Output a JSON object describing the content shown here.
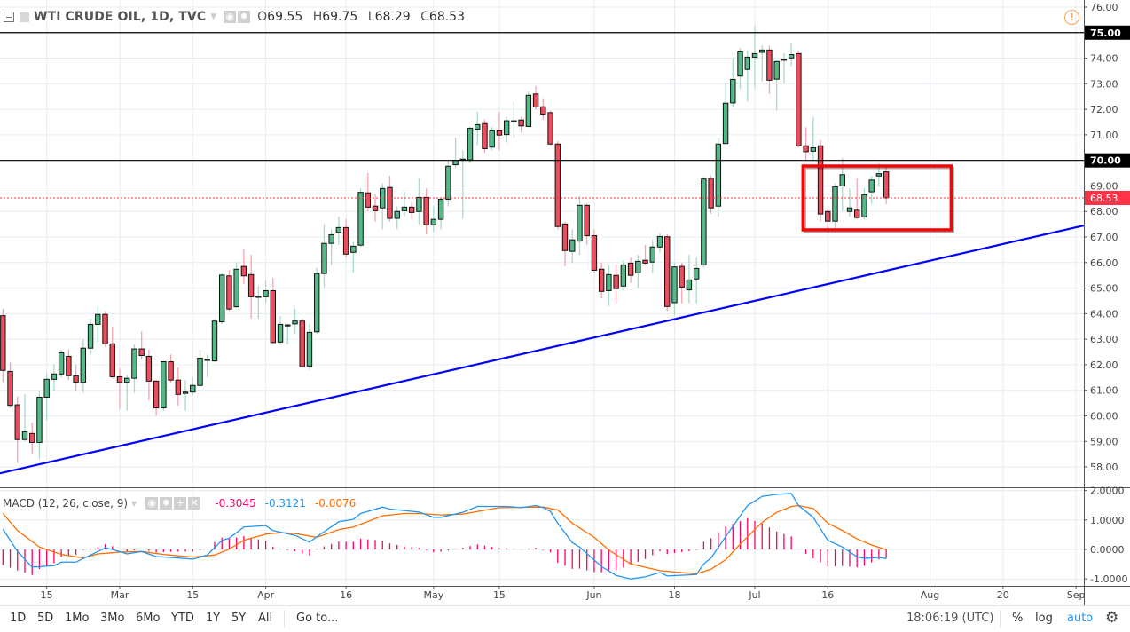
{
  "header": {
    "title": "WTI CRUDE OIL, 1D, TVC",
    "ohlc": {
      "o_label": "O",
      "o": "69.55",
      "h_label": "H",
      "h": "69.75",
      "l_label": "L",
      "l": "68.29",
      "c_label": "C",
      "c": "68.53"
    }
  },
  "macd_header": {
    "title": "MACD (12, 26, close, 9)",
    "histogram": "-0.3045",
    "macd": "-0.3121",
    "signal": "-0.0076"
  },
  "toolbar": {
    "ranges": [
      "1D",
      "5D",
      "1Mo",
      "3Mo",
      "6Mo",
      "YTD",
      "1Y",
      "5Y",
      "All"
    ],
    "goto": "Go to...",
    "clock": "18:06:19 (UTC)",
    "percent": "%",
    "log": "log",
    "auto": "auto"
  },
  "colors": {
    "up": "#53b987",
    "down": "#eb4d5c",
    "up_wick": "#a9dcc3",
    "down_wick": "#f5a6ae",
    "trendline": "#0000ff",
    "box": "#ff0000",
    "macd": "#2196f3",
    "signal": "#ff6d00",
    "histogram": "#ff0066",
    "price_line": "#ff3347",
    "level_line": "#000000"
  },
  "icons": {
    "collapse": "minus-square-icon",
    "eye": "eye-icon",
    "gear": "gear-icon",
    "alert": "exclamation-circle-icon",
    "add": "plus-icon",
    "close": "close-icon"
  },
  "chart_data": {
    "type": "candlestick",
    "ylim": [
      57.75,
      76.2
    ],
    "y_ticks": [
      "58.00",
      "59.00",
      "60.00",
      "61.00",
      "62.00",
      "63.00",
      "64.00",
      "65.00",
      "66.00",
      "67.00",
      "68.00",
      "69.00",
      "70.00",
      "71.00",
      "72.00",
      "73.00",
      "74.00",
      "75.00",
      "76.00"
    ],
    "x_ticks": [
      {
        "label": "15",
        "bar": 6
      },
      {
        "label": "Mar",
        "bar": 16
      },
      {
        "label": "15",
        "bar": 26
      },
      {
        "label": "Apr",
        "bar": 36
      },
      {
        "label": "16",
        "bar": 47
      },
      {
        "label": "May",
        "bar": 59
      },
      {
        "label": "15",
        "bar": 68
      },
      {
        "label": "Jun",
        "bar": 81
      },
      {
        "label": "18",
        "bar": 92
      },
      {
        "label": "Jul",
        "bar": 103
      },
      {
        "label": "16",
        "bar": 113
      },
      {
        "label": "Aug",
        "bar": 127
      },
      {
        "label": "20",
        "bar": 137
      },
      {
        "label": "Sep",
        "bar": 147
      }
    ],
    "grid": true,
    "ohlc": [
      [
        63.92,
        64.18,
        61.31,
        61.78
      ],
      [
        61.74,
        62.09,
        60.3,
        60.41
      ],
      [
        60.43,
        60.76,
        58.15,
        59.07
      ],
      [
        59.07,
        60.85,
        59.0,
        59.38
      ],
      [
        59.31,
        59.74,
        58.5,
        58.96
      ],
      [
        58.96,
        60.93,
        58.3,
        60.73
      ],
      [
        60.73,
        61.66,
        59.83,
        61.43
      ],
      [
        61.43,
        62.01,
        60.97,
        61.64
      ],
      [
        61.64,
        62.6,
        61.5,
        62.47
      ],
      [
        62.33,
        62.6,
        61.4,
        61.57
      ],
      [
        61.57,
        62.0,
        61.0,
        61.31
      ],
      [
        61.31,
        63.0,
        60.9,
        62.65
      ],
      [
        62.65,
        63.8,
        62.4,
        63.58
      ],
      [
        63.58,
        64.3,
        62.9,
        63.97
      ],
      [
        63.97,
        64.1,
        62.7,
        62.82
      ],
      [
        62.82,
        63.5,
        61.45,
        61.53
      ],
      [
        61.53,
        61.86,
        60.27,
        61.31
      ],
      [
        61.31,
        61.6,
        60.2,
        61.47
      ],
      [
        61.47,
        62.8,
        60.9,
        62.62
      ],
      [
        62.62,
        63.3,
        62.2,
        62.36
      ],
      [
        62.33,
        62.6,
        60.6,
        61.36
      ],
      [
        61.36,
        61.4,
        60.0,
        60.31
      ],
      [
        60.31,
        62.14,
        60.2,
        62.12
      ],
      [
        62.12,
        62.4,
        61.3,
        61.4
      ],
      [
        61.4,
        61.9,
        60.4,
        60.84
      ],
      [
        60.88,
        61.4,
        60.2,
        60.93
      ],
      [
        60.93,
        61.5,
        60.8,
        61.19
      ],
      [
        61.19,
        62.6,
        61.1,
        62.26
      ],
      [
        62.2,
        62.4,
        61.5,
        62.21
      ],
      [
        62.15,
        63.8,
        62.1,
        63.71
      ],
      [
        63.68,
        65.6,
        63.6,
        65.51
      ],
      [
        65.48,
        65.7,
        64.1,
        64.18
      ],
      [
        64.27,
        66.02,
        64.21,
        65.74
      ],
      [
        65.85,
        66.55,
        65.16,
        65.48
      ],
      [
        65.53,
        66.3,
        63.8,
        64.66
      ],
      [
        64.68,
        65.1,
        63.8,
        64.68
      ],
      [
        64.66,
        65.3,
        64.4,
        64.9
      ],
      [
        64.9,
        65.4,
        62.9,
        62.87
      ],
      [
        62.89,
        63.9,
        62.8,
        63.58
      ],
      [
        63.56,
        63.6,
        62.8,
        63.56
      ],
      [
        63.6,
        64.2,
        63.2,
        63.71
      ],
      [
        63.71,
        63.8,
        61.9,
        61.92
      ],
      [
        61.95,
        63.6,
        61.8,
        63.27
      ],
      [
        63.29,
        65.8,
        63.2,
        65.57
      ],
      [
        65.57,
        67.5,
        65.0,
        66.75
      ],
      [
        66.75,
        67.3,
        65.9,
        67.09
      ],
      [
        67.18,
        67.8,
        66.7,
        67.37
      ],
      [
        67.37,
        67.7,
        66.2,
        66.33
      ],
      [
        66.4,
        66.8,
        65.6,
        66.64
      ],
      [
        66.68,
        68.9,
        66.6,
        68.75
      ],
      [
        68.73,
        69.5,
        68.0,
        68.17
      ],
      [
        68.21,
        68.7,
        67.6,
        68.03
      ],
      [
        68.14,
        69.1,
        67.3,
        68.9
      ],
      [
        68.94,
        69.4,
        67.6,
        67.73
      ],
      [
        67.73,
        68.2,
        67.3,
        68.0
      ],
      [
        68.03,
        68.8,
        67.8,
        68.17
      ],
      [
        68.17,
        68.35,
        67.7,
        67.96
      ],
      [
        68.0,
        69.3,
        67.5,
        68.55
      ],
      [
        68.55,
        68.9,
        67.1,
        67.48
      ],
      [
        67.48,
        68.2,
        67.2,
        67.69
      ],
      [
        67.69,
        68.5,
        67.3,
        68.48
      ],
      [
        68.48,
        70.0,
        68.2,
        69.77
      ],
      [
        69.83,
        70.9,
        69.7,
        70.0
      ],
      [
        70.05,
        70.4,
        67.71,
        70.05
      ],
      [
        70.02,
        71.3,
        69.9,
        71.26
      ],
      [
        71.22,
        71.9,
        70.6,
        71.4
      ],
      [
        71.44,
        71.6,
        70.3,
        70.46
      ],
      [
        70.52,
        71.3,
        70.4,
        71.16
      ],
      [
        71.16,
        71.9,
        70.4,
        70.99
      ],
      [
        71.01,
        71.7,
        70.7,
        71.55
      ],
      [
        71.55,
        72.3,
        70.9,
        71.55
      ],
      [
        71.58,
        71.7,
        71.1,
        71.35
      ],
      [
        71.33,
        72.7,
        71.3,
        72.55
      ],
      [
        72.6,
        72.92,
        72.0,
        72.09
      ],
      [
        72.1,
        72.4,
        71.6,
        71.81
      ],
      [
        71.87,
        71.95,
        70.6,
        70.64
      ],
      [
        70.64,
        70.75,
        67.3,
        67.41
      ],
      [
        67.51,
        67.6,
        65.85,
        66.47
      ],
      [
        66.44,
        67.3,
        65.98,
        66.89
      ],
      [
        66.84,
        68.6,
        66.3,
        68.24
      ],
      [
        68.24,
        68.3,
        66.7,
        67.05
      ],
      [
        67.05,
        67.3,
        65.6,
        65.7
      ],
      [
        65.74,
        66.0,
        64.6,
        64.87
      ],
      [
        64.9,
        65.9,
        64.3,
        65.53
      ],
      [
        65.5,
        65.95,
        64.4,
        64.98
      ],
      [
        65.08,
        66.1,
        64.9,
        65.91
      ],
      [
        65.98,
        66.2,
        65.2,
        65.5
      ],
      [
        65.6,
        66.3,
        65.0,
        66.05
      ],
      [
        66.09,
        66.7,
        65.9,
        65.98
      ],
      [
        66.02,
        66.9,
        65.6,
        66.61
      ],
      [
        66.61,
        67.15,
        66.4,
        67.02
      ],
      [
        67.01,
        67.1,
        64.1,
        64.28
      ],
      [
        64.43,
        66.0,
        63.94,
        65.83
      ],
      [
        65.85,
        66.0,
        64.4,
        65.04
      ],
      [
        64.93,
        66.3,
        64.4,
        65.32
      ],
      [
        65.36,
        66.2,
        64.4,
        65.77
      ],
      [
        65.91,
        69.35,
        65.8,
        69.27
      ],
      [
        69.3,
        69.4,
        67.9,
        68.14
      ],
      [
        68.21,
        70.9,
        67.8,
        70.64
      ],
      [
        70.66,
        73.0,
        70.6,
        72.24
      ],
      [
        72.25,
        74.0,
        72.1,
        73.17
      ],
      [
        73.3,
        74.4,
        72.8,
        74.25
      ],
      [
        73.56,
        74.3,
        72.3,
        74.04
      ],
      [
        74.04,
        75.27,
        72.83,
        74.18
      ],
      [
        74.23,
        74.5,
        73.1,
        74.32
      ],
      [
        74.32,
        74.5,
        72.6,
        73.14
      ],
      [
        73.18,
        73.9,
        71.95,
        73.87
      ],
      [
        73.96,
        74.2,
        73.0,
        73.96
      ],
      [
        74.01,
        74.6,
        73.7,
        74.14
      ],
      [
        74.18,
        74.25,
        70.5,
        70.57
      ],
      [
        70.57,
        71.3,
        70.0,
        70.34
      ],
      [
        70.36,
        71.7,
        70.0,
        70.49
      ],
      [
        70.57,
        70.8,
        67.6,
        67.9
      ],
      [
        68.0,
        68.1,
        67.2,
        67.62
      ],
      [
        67.62,
        69.1,
        67.2,
        68.97
      ],
      [
        69.0,
        70.1,
        68.0,
        69.44
      ],
      [
        68.0,
        68.9,
        67.8,
        68.14
      ],
      [
        68.05,
        69.3,
        67.7,
        67.76
      ],
      [
        67.79,
        68.9,
        67.7,
        68.66
      ],
      [
        68.77,
        69.4,
        68.3,
        69.23
      ],
      [
        69.39,
        69.9,
        68.98,
        69.48
      ],
      [
        69.55,
        69.75,
        68.29,
        68.53
      ]
    ],
    "horizontal_levels": [
      {
        "price": 75.0,
        "label": "75.00"
      },
      {
        "price": 70.0,
        "label": "70.00"
      }
    ],
    "last_price": {
      "price": 68.53,
      "label": "68.53"
    },
    "trendline": {
      "from": {
        "bar": -0.4,
        "price": 57.75
      },
      "to": {
        "bar": 148.1,
        "price": 67.45
      }
    },
    "highlight_box": {
      "bar_from": 109.6,
      "bar_to": 129.9,
      "price_top": 69.78,
      "price_bottom": 67.28
    },
    "macd_pane": {
      "ylim": [
        -1.2,
        2.05
      ],
      "y_ticks": [
        "2.0000",
        "1.0000",
        "0.0000",
        "-1.0000"
      ],
      "macd": [
        [
          0,
          0.69
        ],
        [
          2,
          -0.07
        ],
        [
          4,
          -0.6
        ],
        [
          7,
          -0.55
        ],
        [
          8,
          -0.43
        ],
        [
          10,
          -0.43
        ],
        [
          12,
          -0.19
        ],
        [
          14,
          0.05
        ],
        [
          15,
          0.0
        ],
        [
          17,
          -0.15
        ],
        [
          19,
          -0.07
        ],
        [
          21,
          -0.24
        ],
        [
          24,
          -0.29
        ],
        [
          26,
          -0.33
        ],
        [
          28,
          -0.19
        ],
        [
          30,
          0.31
        ],
        [
          31,
          0.38
        ],
        [
          33,
          0.76
        ],
        [
          36,
          0.81
        ],
        [
          37,
          0.64
        ],
        [
          40,
          0.48
        ],
        [
          42,
          0.25
        ],
        [
          43,
          0.43
        ],
        [
          46,
          0.94
        ],
        [
          48,
          1.02
        ],
        [
          49,
          1.22
        ],
        [
          52,
          1.44
        ],
        [
          53,
          1.37
        ],
        [
          57,
          1.27
        ],
        [
          59,
          1.09
        ],
        [
          60,
          1.09
        ],
        [
          63,
          1.26
        ],
        [
          65,
          1.46
        ],
        [
          69,
          1.46
        ],
        [
          71,
          1.42
        ],
        [
          73,
          1.49
        ],
        [
          74,
          1.42
        ],
        [
          75,
          1.29
        ],
        [
          76,
          0.89
        ],
        [
          78,
          0.23
        ],
        [
          79,
          0.08
        ],
        [
          82,
          -0.58
        ],
        [
          84,
          -0.88
        ],
        [
          86,
          -1.0
        ],
        [
          88,
          -0.93
        ],
        [
          90,
          -0.78
        ],
        [
          91,
          -0.9
        ],
        [
          95,
          -0.85
        ],
        [
          96,
          -0.49
        ],
        [
          97,
          -0.29
        ],
        [
          99,
          0.43
        ],
        [
          101,
          1.14
        ],
        [
          102,
          1.49
        ],
        [
          104,
          1.8
        ],
        [
          106,
          1.87
        ],
        [
          108,
          1.9
        ],
        [
          109,
          1.49
        ],
        [
          111,
          1.09
        ],
        [
          113,
          0.31
        ],
        [
          115,
          0.08
        ],
        [
          117,
          -0.25
        ],
        [
          118,
          -0.3
        ],
        [
          120,
          -0.27
        ],
        [
          121,
          -0.3121
        ]
      ],
      "signal": [
        [
          0,
          1.22
        ],
        [
          2,
          0.64
        ],
        [
          5,
          0.08
        ],
        [
          8,
          -0.17
        ],
        [
          11,
          -0.29
        ],
        [
          13,
          -0.15
        ],
        [
          16,
          -0.09
        ],
        [
          19,
          -0.07
        ],
        [
          22,
          -0.17
        ],
        [
          26,
          -0.26
        ],
        [
          29,
          -0.19
        ],
        [
          31,
          0.01
        ],
        [
          33,
          0.31
        ],
        [
          36,
          0.52
        ],
        [
          38,
          0.57
        ],
        [
          40,
          0.54
        ],
        [
          43,
          0.41
        ],
        [
          46,
          0.67
        ],
        [
          48,
          0.76
        ],
        [
          52,
          1.14
        ],
        [
          55,
          1.22
        ],
        [
          57,
          1.22
        ],
        [
          60,
          1.17
        ],
        [
          63,
          1.2
        ],
        [
          68,
          1.42
        ],
        [
          74,
          1.44
        ],
        [
          76,
          1.34
        ],
        [
          78,
          0.89
        ],
        [
          81,
          0.41
        ],
        [
          83,
          -0.02
        ],
        [
          86,
          -0.49
        ],
        [
          90,
          -0.72
        ],
        [
          95,
          -0.83
        ],
        [
          97,
          -0.67
        ],
        [
          99,
          -0.35
        ],
        [
          101,
          0.18
        ],
        [
          104,
          0.92
        ],
        [
          106,
          1.26
        ],
        [
          108,
          1.46
        ],
        [
          109,
          1.49
        ],
        [
          111,
          1.39
        ],
        [
          113,
          0.89
        ],
        [
          115,
          0.64
        ],
        [
          117,
          0.36
        ],
        [
          119,
          0.15
        ],
        [
          121,
          -0.0076
        ]
      ]
    }
  }
}
